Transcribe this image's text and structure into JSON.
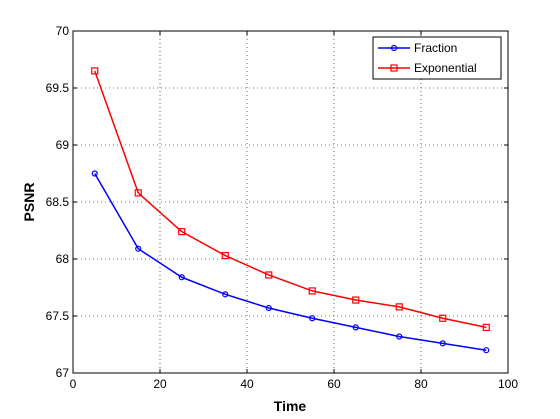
{
  "chart_data": {
    "type": "line",
    "title": "",
    "xlabel": "Time",
    "ylabel": "PSNR",
    "xlim": [
      0,
      100
    ],
    "ylim": [
      67,
      70
    ],
    "xticks": [
      0,
      20,
      40,
      60,
      80,
      100
    ],
    "yticks": [
      67,
      67.5,
      68,
      68.5,
      69,
      69.5,
      70
    ],
    "xtick_labels": [
      "0",
      "20",
      "40",
      "60",
      "80",
      "100"
    ],
    "ytick_labels": [
      "67",
      "67.5",
      "68",
      "68.5",
      "69",
      "69.5",
      "70"
    ],
    "grid": true,
    "legend_position": "top-right",
    "x": [
      5,
      15,
      25,
      35,
      45,
      55,
      65,
      75,
      85,
      95
    ],
    "series": [
      {
        "name": "Fraction",
        "color": "#0000ff",
        "marker": "circle",
        "values": [
          68.75,
          68.09,
          67.84,
          67.69,
          67.57,
          67.48,
          67.4,
          67.32,
          67.26,
          67.2
        ]
      },
      {
        "name": "Exponential",
        "color": "#ff0000",
        "marker": "square",
        "values": [
          69.65,
          68.58,
          68.24,
          68.03,
          67.86,
          67.72,
          67.64,
          67.58,
          67.48,
          67.4
        ]
      }
    ]
  }
}
